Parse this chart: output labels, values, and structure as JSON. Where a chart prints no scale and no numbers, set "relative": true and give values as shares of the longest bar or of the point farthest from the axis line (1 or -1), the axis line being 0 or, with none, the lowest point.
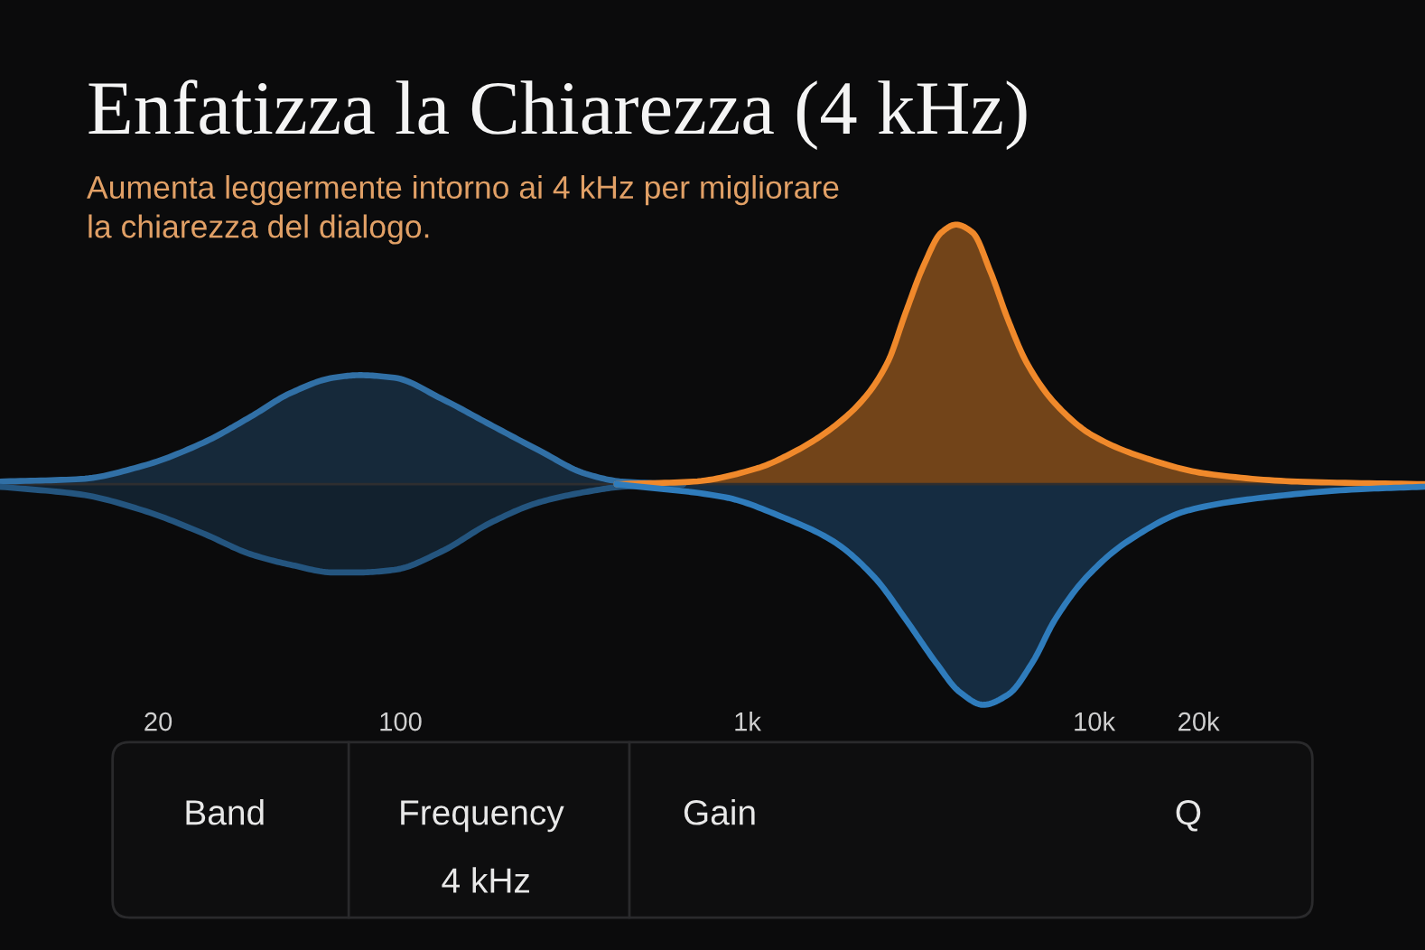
{
  "chart_data": [
    {
      "type": "area",
      "title": "Enfatizza la Chiarezza (4 kHz)",
      "subtitle": "Aumenta leggermente intorno ai 4 kHz per migliorare\nla chiarezza del dialogo.",
      "relative": true,
      "log": "x",
      "xlim": [
        7,
        90000
      ],
      "xticks": [
        20,
        100,
        {
          "value": 1000,
          "label": "1k"
        },
        {
          "value": 10000,
          "label": "10k"
        },
        {
          "value": 20000,
          "label": "20k"
        }
      ],
      "series": [
        {
          "color": "#3170a6",
          "x": [
            7,
            12,
            18,
            27,
            37,
            48,
            64,
            76,
            96,
            131,
            181,
            251,
            342,
            435,
            653
          ],
          "values": [
            0.01,
            0.02,
            0.07,
            0.16,
            0.26,
            0.35,
            0.41,
            0.42,
            0.41,
            0.33,
            0.23,
            0.13,
            0.04,
            0.01,
            0
          ]
        },
        {
          "color": "#24557f",
          "x": [
            7,
            12,
            18,
            27,
            37,
            48,
            64,
            76,
            96,
            131,
            181,
            251,
            342,
            435,
            653
          ],
          "values": [
            -0.01,
            -0.04,
            -0.1,
            -0.19,
            -0.27,
            -0.31,
            -0.34,
            -0.34,
            -0.33,
            -0.26,
            -0.15,
            -0.07,
            -0.03,
            -0.01,
            0
          ]
        },
        {
          "color": "#f0892b",
          "x": [
            420,
            700,
            1060,
            1390,
            1770,
            2170,
            2540,
            2860,
            3220,
            3630,
            4000,
            4460,
            5020,
            5660,
            6380,
            7730,
            9840,
            14100,
            21200,
            38500,
            90000
          ],
          "values": [
            0,
            0.01,
            0.06,
            0.13,
            0.22,
            0.33,
            0.47,
            0.66,
            0.84,
            0.97,
            1,
            0.97,
            0.82,
            0.63,
            0.47,
            0.31,
            0.19,
            0.1,
            0.04,
            0.01,
            0
          ]
        },
        {
          "color": "#2f7cbc",
          "x": [
            420,
            860,
            1280,
            1770,
            2330,
            2860,
            3510,
            4090,
            4790,
            5660,
            6620,
            7730,
            9480,
            12500,
            18800,
            31500,
            57300,
            90000
          ],
          "values": [
            0,
            -0.05,
            -0.13,
            -0.22,
            -0.36,
            -0.52,
            -0.69,
            -0.8,
            -0.85,
            -0.81,
            -0.69,
            -0.52,
            -0.36,
            -0.22,
            -0.1,
            -0.05,
            -0.02,
            -0.01
          ]
        }
      ]
    },
    {
      "type": "other",
      "annotations": [
        "Band",
        "Frequency",
        "4 kHz",
        "Gain",
        "Q"
      ]
    }
  ]
}
